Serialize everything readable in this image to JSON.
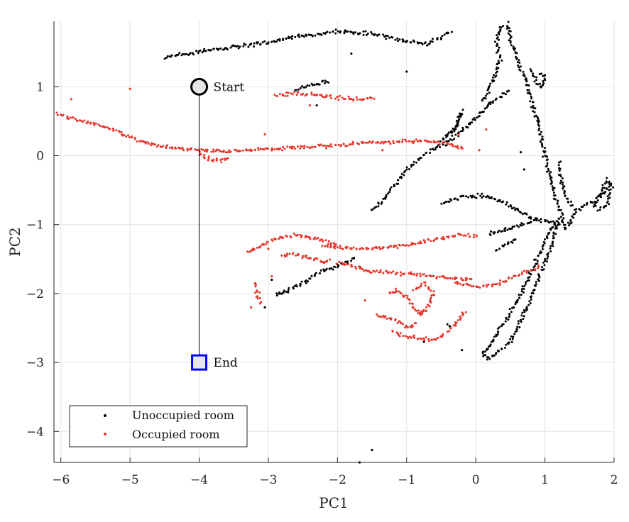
{
  "chart_data": {
    "type": "scatter",
    "xlabel": "PC1",
    "ylabel": "PC2",
    "xlim": [
      -6.1,
      2.0
    ],
    "ylim": [
      -4.45,
      1.95
    ],
    "xticks": [
      -6,
      -5,
      -4,
      -3,
      -2,
      -1,
      0,
      1,
      2
    ],
    "xtick_labels": [
      "−6",
      "−5",
      "−4",
      "−3",
      "−2",
      "−1",
      "0",
      "1",
      "2"
    ],
    "yticks": [
      -4,
      -3,
      -2,
      -1,
      0,
      1
    ],
    "ytick_labels": [
      "−4",
      "−3",
      "−2",
      "−1",
      "0",
      "1"
    ],
    "grid": true,
    "legend_position": "bottom-left",
    "series": [
      {
        "name": "Unoccupied room",
        "color": "#000000",
        "polylines": [
          [
            [
              -4.5,
              1.43
            ],
            [
              -3.8,
              1.54
            ],
            [
              -3.0,
              1.64
            ],
            [
              -2.5,
              1.75
            ],
            [
              -2.0,
              1.8
            ],
            [
              -1.5,
              1.76
            ],
            [
              -1.0,
              1.66
            ],
            [
              -0.7,
              1.62
            ],
            [
              -0.5,
              1.72
            ],
            [
              -0.35,
              1.82
            ]
          ],
          [
            [
              -2.6,
              0.95
            ],
            [
              -2.4,
              1.02
            ],
            [
              -2.1,
              1.08
            ]
          ],
          [
            [
              0.1,
              0.78
            ],
            [
              0.25,
              1.1
            ],
            [
              0.35,
              1.42
            ],
            [
              0.3,
              1.65
            ],
            [
              0.35,
              1.8
            ],
            [
              0.4,
              1.92
            ]
          ],
          [
            [
              0.45,
              1.92
            ],
            [
              0.5,
              1.7
            ],
            [
              0.6,
              1.4
            ],
            [
              0.75,
              1.0
            ],
            [
              0.9,
              0.5
            ],
            [
              1.0,
              0.0
            ],
            [
              1.15,
              -0.6
            ],
            [
              1.3,
              -1.05
            ],
            [
              1.45,
              -0.8
            ],
            [
              1.6,
              -0.7
            ],
            [
              1.8,
              -0.6
            ],
            [
              1.95,
              -0.4
            ]
          ],
          [
            [
              0.8,
              1.25
            ],
            [
              0.85,
              1.1
            ],
            [
              0.95,
              1.0
            ],
            [
              1.0,
              1.15
            ],
            [
              0.9,
              1.2
            ]
          ],
          [
            [
              -0.5,
              0.2
            ],
            [
              -0.3,
              0.4
            ],
            [
              -0.2,
              0.65
            ],
            [
              -0.25,
              0.5
            ],
            [
              -0.35,
              0.3
            ]
          ],
          [
            [
              -1.5,
              -0.8
            ],
            [
              -1.3,
              -0.6
            ],
            [
              -1.0,
              -0.2
            ],
            [
              -0.7,
              0.05
            ],
            [
              -0.4,
              0.2
            ],
            [
              -0.1,
              0.45
            ],
            [
              0.2,
              0.75
            ],
            [
              0.5,
              0.95
            ]
          ],
          [
            [
              -0.5,
              -0.7
            ],
            [
              -0.2,
              -0.6
            ],
            [
              0.1,
              -0.58
            ],
            [
              0.35,
              -0.65
            ],
            [
              0.6,
              -0.8
            ],
            [
              0.8,
              -0.9
            ],
            [
              1.0,
              -0.95
            ],
            [
              1.25,
              -1.0
            ]
          ],
          [
            [
              1.2,
              -0.1
            ],
            [
              1.25,
              -0.4
            ],
            [
              1.3,
              -0.6
            ],
            [
              1.4,
              -0.75
            ]
          ],
          [
            [
              0.2,
              -1.15
            ],
            [
              0.4,
              -1.08
            ],
            [
              0.65,
              -1.0
            ],
            [
              0.9,
              -0.93
            ]
          ],
          [
            [
              1.7,
              -0.75
            ],
            [
              1.8,
              -0.55
            ],
            [
              1.9,
              -0.35
            ],
            [
              1.96,
              -0.45
            ],
            [
              1.9,
              -0.7
            ],
            [
              1.75,
              -0.8
            ]
          ],
          [
            [
              1.2,
              -0.9
            ],
            [
              1.1,
              -1.3
            ],
            [
              0.9,
              -1.8
            ],
            [
              0.7,
              -2.3
            ],
            [
              0.5,
              -2.7
            ],
            [
              0.2,
              -2.95
            ],
            [
              0.1,
              -2.9
            ],
            [
              0.3,
              -2.6
            ],
            [
              0.6,
              -2.1
            ],
            [
              0.85,
              -1.6
            ],
            [
              1.0,
              -1.25
            ],
            [
              1.15,
              -0.95
            ]
          ],
          [
            [
              0.3,
              -1.35
            ],
            [
              0.45,
              -1.28
            ],
            [
              0.6,
              -1.2
            ]
          ],
          [
            [
              -1.75,
              -1.48
            ],
            [
              -1.85,
              -1.55
            ],
            [
              -2.05,
              -1.62
            ],
            [
              -2.3,
              -1.7
            ],
            [
              -2.5,
              -1.85
            ],
            [
              -2.7,
              -1.95
            ],
            [
              -2.9,
              -2.05
            ]
          ],
          [
            [
              -0.4,
              -2.45
            ],
            [
              -0.35,
              -2.5
            ]
          ]
        ],
        "points": [
          [
            -1.5,
            -4.27
          ],
          [
            -1.68,
            -4.45
          ],
          [
            -1.0,
            1.22
          ],
          [
            -1.8,
            1.48
          ],
          [
            -2.3,
            0.73
          ],
          [
            -0.75,
            -2.7
          ],
          [
            -0.2,
            -2.82
          ],
          [
            -3.05,
            -2.2
          ],
          [
            -2.95,
            -1.8
          ],
          [
            -2.8,
            -2.0
          ],
          [
            0.22,
            -1.1
          ],
          [
            0.15,
            -0.6
          ],
          [
            0.65,
            0.05
          ],
          [
            0.7,
            -0.2
          ]
        ]
      },
      {
        "name": "Occupied room",
        "color": "#e8342a",
        "polylines": [
          [
            [
              -6.05,
              0.6
            ],
            [
              -5.8,
              0.52
            ],
            [
              -5.5,
              0.45
            ],
            [
              -5.2,
              0.35
            ],
            [
              -4.9,
              0.22
            ],
            [
              -4.6,
              0.15
            ],
            [
              -4.2,
              0.1
            ],
            [
              -3.9,
              0.07
            ],
            [
              -3.5,
              0.07
            ],
            [
              -3.2,
              0.09
            ],
            [
              -2.8,
              0.11
            ],
            [
              -2.4,
              0.13
            ],
            [
              -2.0,
              0.15
            ],
            [
              -1.6,
              0.18
            ],
            [
              -1.2,
              0.2
            ],
            [
              -0.8,
              0.22
            ],
            [
              -0.4,
              0.18
            ],
            [
              -0.15,
              0.1
            ]
          ],
          [
            [
              -4.0,
              0.05
            ],
            [
              -3.85,
              -0.05
            ],
            [
              -3.7,
              -0.08
            ],
            [
              -3.55,
              -0.04
            ]
          ],
          [
            [
              -2.9,
              0.88
            ],
            [
              -2.6,
              0.9
            ],
            [
              -2.3,
              0.88
            ],
            [
              -2.0,
              0.84
            ],
            [
              -1.7,
              0.82
            ],
            [
              -1.45,
              0.83
            ]
          ],
          [
            [
              -3.3,
              -1.4
            ],
            [
              -3.1,
              -1.3
            ],
            [
              -2.9,
              -1.2
            ],
            [
              -2.6,
              -1.15
            ],
            [
              -2.3,
              -1.2
            ],
            [
              -2.0,
              -1.3
            ]
          ],
          [
            [
              -2.8,
              -1.45
            ],
            [
              -2.65,
              -1.42
            ],
            [
              -2.5,
              -1.46
            ],
            [
              -2.35,
              -1.5
            ],
            [
              -2.2,
              -1.55
            ],
            [
              -2.1,
              -1.48
            ]
          ],
          [
            [
              -2.0,
              -1.55
            ],
            [
              -1.8,
              -1.6
            ],
            [
              -1.5,
              -1.68
            ],
            [
              -1.2,
              -1.7
            ],
            [
              -0.9,
              -1.72
            ],
            [
              -0.6,
              -1.75
            ],
            [
              -0.3,
              -1.78
            ],
            [
              -0.05,
              -1.8
            ]
          ],
          [
            [
              -2.2,
              -1.3
            ],
            [
              -1.8,
              -1.35
            ],
            [
              -1.4,
              -1.35
            ],
            [
              -1.0,
              -1.3
            ],
            [
              -0.6,
              -1.22
            ],
            [
              -0.25,
              -1.15
            ],
            [
              0.05,
              -1.15
            ]
          ],
          [
            [
              -0.3,
              -1.85
            ],
            [
              0.05,
              -1.9
            ],
            [
              0.35,
              -1.85
            ],
            [
              0.65,
              -1.72
            ],
            [
              0.95,
              -1.6
            ]
          ],
          [
            [
              -3.2,
              -1.85
            ],
            [
              -3.15,
              -2.05
            ],
            [
              -3.1,
              -2.15
            ]
          ],
          [
            [
              -1.25,
              -2.0
            ],
            [
              -1.15,
              -1.95
            ],
            [
              -1.0,
              -2.05
            ],
            [
              -0.9,
              -2.2
            ],
            [
              -0.8,
              -2.3
            ],
            [
              -0.7,
              -2.25
            ]
          ],
          [
            [
              -1.45,
              -2.32
            ],
            [
              -1.3,
              -2.35
            ],
            [
              -1.1,
              -2.42
            ],
            [
              -0.95,
              -2.5
            ],
            [
              -0.85,
              -2.42
            ]
          ],
          [
            [
              -1.2,
              -2.55
            ],
            [
              -1.05,
              -2.62
            ],
            [
              -0.8,
              -2.65
            ],
            [
              -0.6,
              -2.68
            ],
            [
              -0.45,
              -2.6
            ]
          ],
          [
            [
              -0.9,
              -1.95
            ],
            [
              -0.75,
              -1.85
            ],
            [
              -0.6,
              -2.0
            ],
            [
              -0.7,
              -2.2
            ],
            [
              -0.85,
              -2.3
            ]
          ],
          [
            [
              -0.4,
              -2.55
            ],
            [
              -0.25,
              -2.4
            ],
            [
              -0.15,
              -2.25
            ]
          ]
        ],
        "points": [
          [
            -5.0,
            0.97
          ],
          [
            -5.85,
            0.82
          ],
          [
            -3.05,
            0.31
          ],
          [
            -1.35,
            0.08
          ],
          [
            0.15,
            0.38
          ],
          [
            -2.4,
            0.73
          ],
          [
            -2.2,
            0.85
          ],
          [
            0.05,
            0.08
          ],
          [
            -0.25,
            0.3
          ],
          [
            -3.0,
            -1.35
          ],
          [
            -2.95,
            -1.75
          ],
          [
            -3.25,
            -2.2
          ],
          [
            -1.6,
            -2.1
          ]
        ]
      }
    ],
    "annotations": [
      {
        "label": "Start",
        "x": -4.0,
        "y": 1.0,
        "marker": "circle",
        "marker_fill": "#e6e6e6",
        "marker_edge": "#000000"
      },
      {
        "label": "End",
        "x": -4.0,
        "y": -3.0,
        "marker": "square",
        "marker_fill": "#e6e6e6",
        "marker_edge": "#0000ff"
      }
    ],
    "path": [
      [
        -4.0,
        1.0
      ],
      [
        -4.0,
        -3.0
      ]
    ]
  }
}
